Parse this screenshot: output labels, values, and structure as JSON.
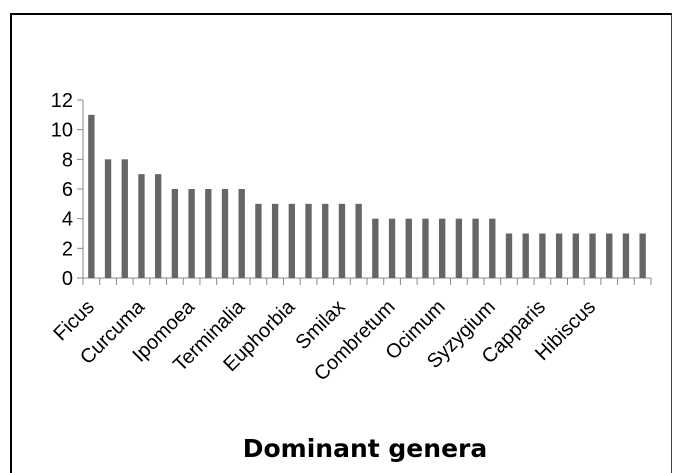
{
  "chart_data": {
    "type": "bar",
    "title": "",
    "xlabel": "Dominant genera",
    "ylabel": "",
    "ylim": [
      0,
      12
    ],
    "yticks": [
      0,
      2,
      4,
      6,
      8,
      10,
      12
    ],
    "grid": false,
    "legend": "none",
    "bar_color": "#666666",
    "values": [
      11,
      8,
      8,
      7,
      7,
      6,
      6,
      6,
      6,
      6,
      5,
      5,
      5,
      5,
      5,
      5,
      5,
      4,
      4,
      4,
      4,
      4,
      4,
      4,
      4,
      3,
      3,
      3,
      3,
      3,
      3,
      3,
      3,
      3
    ],
    "category_labels": [
      {
        "index": 0,
        "text": "Ficus"
      },
      {
        "index": 3,
        "text": "Curcuma"
      },
      {
        "index": 6,
        "text": "Ipomoea"
      },
      {
        "index": 9,
        "text": "Terminalia"
      },
      {
        "index": 12,
        "text": "Euphorbia"
      },
      {
        "index": 15,
        "text": "Smilax"
      },
      {
        "index": 18,
        "text": "Combretum"
      },
      {
        "index": 21,
        "text": "Ocimum"
      },
      {
        "index": 24,
        "text": "Syzygium"
      },
      {
        "index": 27,
        "text": "Capparis"
      },
      {
        "index": 30,
        "text": "Hibiscus"
      }
    ]
  }
}
